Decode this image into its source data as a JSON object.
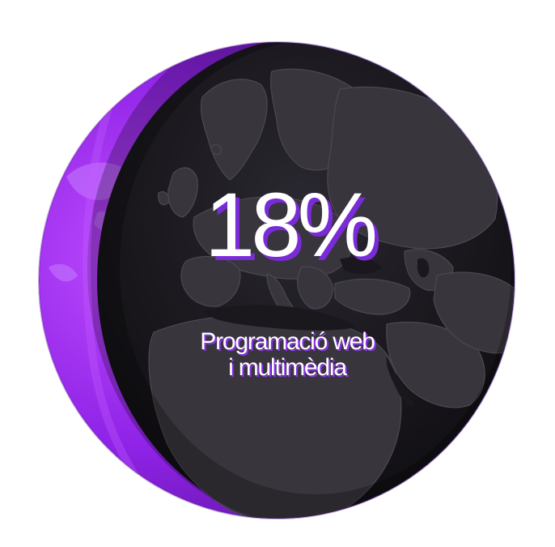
{
  "stat": {
    "value": "18%",
    "label_line1": "Programació web",
    "label_line2": "i multimèdia"
  },
  "colors": {
    "accent": "#a12bf0",
    "globe_dark": "#171519",
    "land": "#3a3740",
    "text": "#ffffff"
  },
  "decoration": {
    "globe": "globe-europe-icon"
  }
}
